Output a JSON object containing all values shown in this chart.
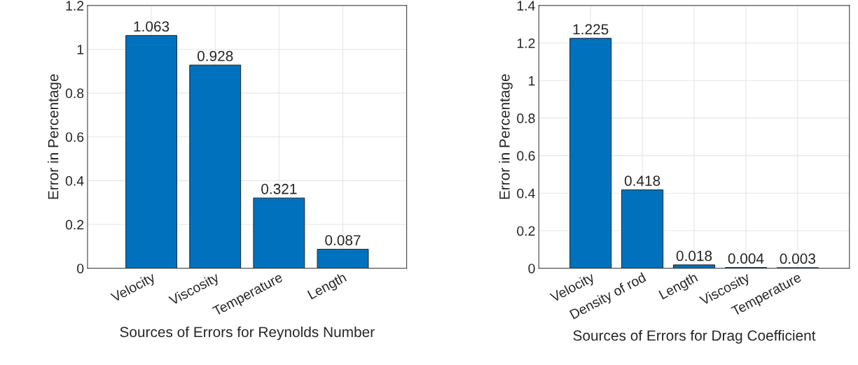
{
  "chart_data": [
    {
      "type": "bar",
      "xlabel": "Sources of Errors for Reynolds Number",
      "ylabel": "Error in Percentage",
      "categories": [
        "Velocity",
        "Viscosity",
        "Temperature",
        "Length"
      ],
      "values": [
        1.063,
        0.928,
        0.321,
        0.087
      ],
      "color": "#0072bd",
      "data_labels": true,
      "ylim": [
        0,
        1.2
      ],
      "yticks": [
        0,
        0.2,
        0.4,
        0.6,
        0.8,
        1,
        1.2
      ],
      "grid": true
    },
    {
      "type": "bar",
      "xlabel": "Sources of Errors for Drag Coefficient",
      "ylabel": "Error in Percentage",
      "categories": [
        "Velocity",
        "Density of rod",
        "Length",
        "Viscosity",
        "Temperature"
      ],
      "values": [
        1.225,
        0.418,
        0.018,
        0.004,
        0.003
      ],
      "color": "#0072bd",
      "data_labels": true,
      "ylim": [
        0,
        1.4
      ],
      "yticks": [
        0,
        0.2,
        0.4,
        0.6,
        0.8,
        1,
        1.2,
        1.4
      ],
      "grid": true
    }
  ]
}
